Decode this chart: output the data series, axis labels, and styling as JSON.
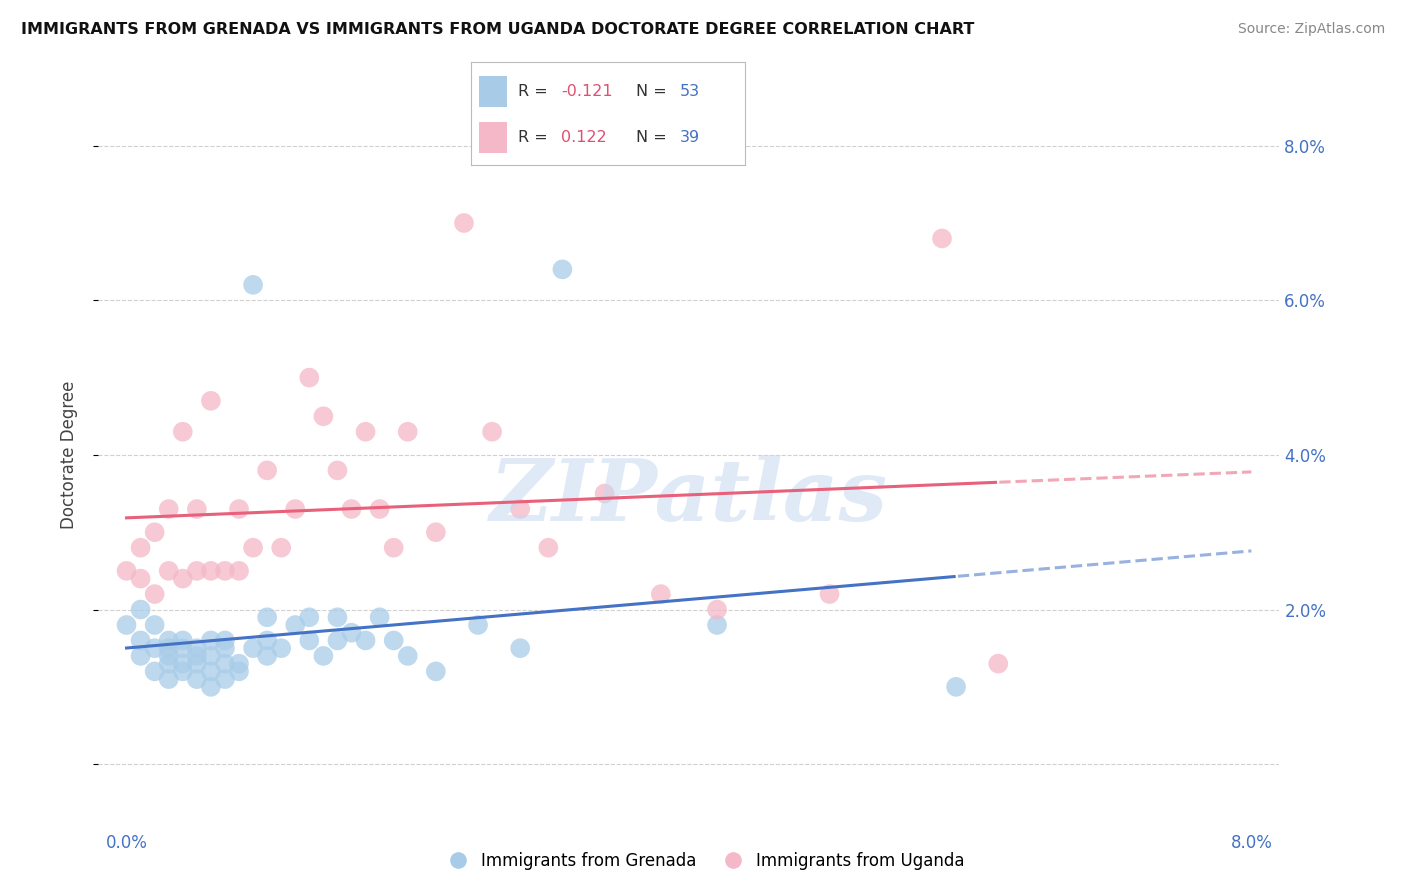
{
  "title": "IMMIGRANTS FROM GRENADA VS IMMIGRANTS FROM UGANDA DOCTORATE DEGREE CORRELATION CHART",
  "source": "Source: ZipAtlas.com",
  "ylabel": "Doctorate Degree",
  "background_color": "#ffffff",
  "grid_color": "#d0d0d0",
  "xlim": [
    -0.002,
    0.082
  ],
  "ylim": [
    -0.005,
    0.085
  ],
  "right_yticks": [
    0.02,
    0.04,
    0.06,
    0.08
  ],
  "right_ylabels": [
    "2.0%",
    "4.0%",
    "6.0%",
    "8.0%"
  ],
  "xtick_positions": [
    0.0,
    0.08
  ],
  "xtick_labels": [
    "0.0%",
    "8.0%"
  ],
  "series": [
    {
      "name": "Immigrants from Grenada",
      "R": -0.121,
      "N": 53,
      "scatter_color": "#a8cce8",
      "line_color": "#4472c4",
      "x": [
        0.0,
        0.001,
        0.001,
        0.001,
        0.002,
        0.002,
        0.002,
        0.003,
        0.003,
        0.003,
        0.003,
        0.003,
        0.004,
        0.004,
        0.004,
        0.004,
        0.005,
        0.005,
        0.005,
        0.005,
        0.006,
        0.006,
        0.006,
        0.006,
        0.007,
        0.007,
        0.007,
        0.007,
        0.008,
        0.008,
        0.009,
        0.009,
        0.01,
        0.01,
        0.01,
        0.011,
        0.012,
        0.013,
        0.013,
        0.014,
        0.015,
        0.015,
        0.016,
        0.017,
        0.018,
        0.019,
        0.02,
        0.022,
        0.025,
        0.028,
        0.031,
        0.042,
        0.059
      ],
      "y": [
        0.018,
        0.02,
        0.016,
        0.014,
        0.018,
        0.015,
        0.012,
        0.016,
        0.014,
        0.013,
        0.015,
        0.011,
        0.015,
        0.013,
        0.016,
        0.012,
        0.015,
        0.013,
        0.011,
        0.014,
        0.014,
        0.012,
        0.01,
        0.016,
        0.013,
        0.015,
        0.011,
        0.016,
        0.012,
        0.013,
        0.015,
        0.062,
        0.016,
        0.014,
        0.019,
        0.015,
        0.018,
        0.016,
        0.019,
        0.014,
        0.019,
        0.016,
        0.017,
        0.016,
        0.019,
        0.016,
        0.014,
        0.012,
        0.018,
        0.015,
        0.064,
        0.018,
        0.01
      ]
    },
    {
      "name": "Immigrants from Uganda",
      "R": 0.122,
      "N": 39,
      "scatter_color": "#f4b8c8",
      "line_color": "#e8607a",
      "x": [
        0.0,
        0.001,
        0.001,
        0.002,
        0.002,
        0.003,
        0.003,
        0.004,
        0.004,
        0.005,
        0.005,
        0.006,
        0.006,
        0.007,
        0.008,
        0.008,
        0.009,
        0.01,
        0.011,
        0.012,
        0.013,
        0.014,
        0.015,
        0.016,
        0.017,
        0.018,
        0.019,
        0.02,
        0.022,
        0.024,
        0.026,
        0.028,
        0.03,
        0.034,
        0.038,
        0.042,
        0.05,
        0.058,
        0.062
      ],
      "y": [
        0.025,
        0.024,
        0.028,
        0.022,
        0.03,
        0.025,
        0.033,
        0.024,
        0.043,
        0.025,
        0.033,
        0.025,
        0.047,
        0.025,
        0.025,
        0.033,
        0.028,
        0.038,
        0.028,
        0.033,
        0.05,
        0.045,
        0.038,
        0.033,
        0.043,
        0.033,
        0.028,
        0.043,
        0.03,
        0.07,
        0.043,
        0.033,
        0.028,
        0.035,
        0.022,
        0.02,
        0.022,
        0.068,
        0.013
      ]
    }
  ],
  "watermark_text": "ZIPatlas",
  "watermark_color": "#c8d8f0"
}
